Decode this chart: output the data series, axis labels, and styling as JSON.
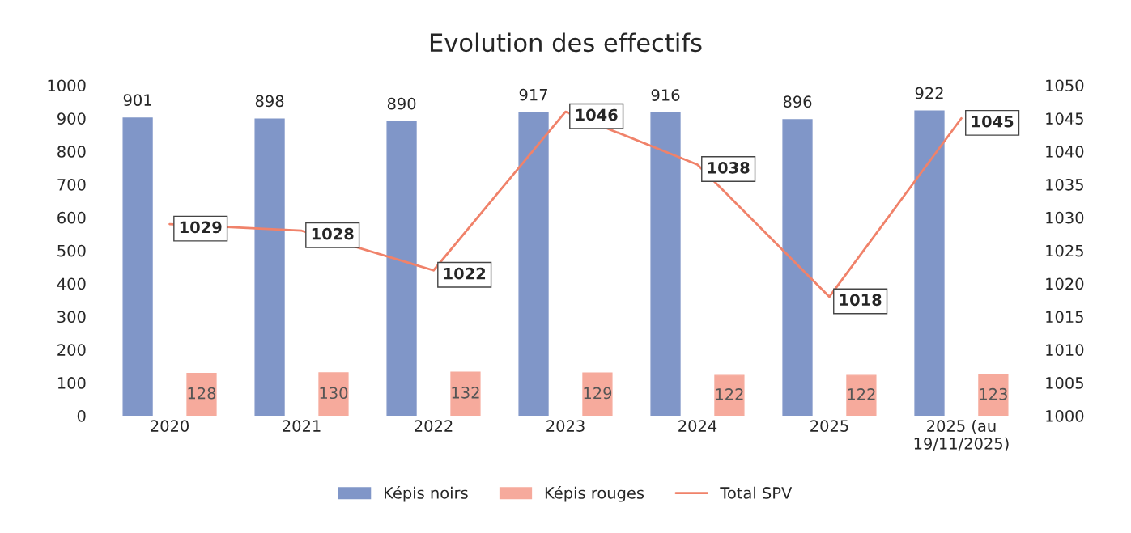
{
  "chart_data": {
    "type": "bar",
    "title": "Evolution des effectifs",
    "categories": [
      "2020",
      "2021",
      "2022",
      "2023",
      "2024",
      "2025",
      "2025 (au\n19/11/2025)"
    ],
    "series": [
      {
        "name": "Képis noirs",
        "color": "#8096c8",
        "values": [
          901,
          898,
          890,
          917,
          916,
          896,
          922
        ]
      },
      {
        "name": "Képis rouges",
        "color": "#f6aa9c",
        "values": [
          128,
          130,
          132,
          129,
          122,
          122,
          123
        ]
      },
      {
        "name": "Total SPV",
        "type": "line",
        "axis": "y2",
        "color": "#f0826a",
        "values": [
          1029,
          1028,
          1022,
          1046,
          1038,
          1018,
          1045
        ]
      }
    ],
    "ylim": [
      0,
      1000
    ],
    "yticks": [
      0,
      100,
      200,
      300,
      400,
      500,
      600,
      700,
      800,
      900,
      1000
    ],
    "y2lim": [
      1000,
      1050
    ],
    "y2ticks": [
      1000,
      1005,
      1010,
      1015,
      1020,
      1025,
      1030,
      1035,
      1040,
      1045,
      1050
    ],
    "data_labels": true,
    "legend": "bottom",
    "grid": false,
    "marker": "none",
    "line_style": "solid"
  }
}
